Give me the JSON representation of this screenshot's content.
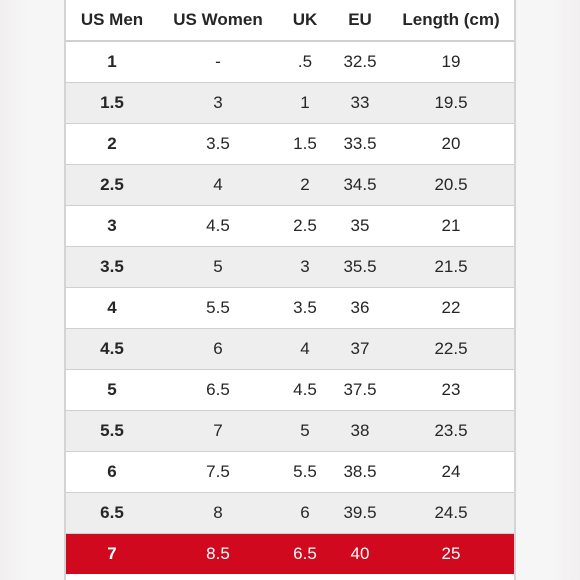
{
  "table": {
    "columns": [
      "US Men",
      "US Women",
      "UK",
      "EU",
      "Length (cm)"
    ],
    "rows": [
      [
        "1",
        "-",
        ".5",
        "32.5",
        "19"
      ],
      [
        "1.5",
        "3",
        "1",
        "33",
        "19.5"
      ],
      [
        "2",
        "3.5",
        "1.5",
        "33.5",
        "20"
      ],
      [
        "2.5",
        "4",
        "2",
        "34.5",
        "20.5"
      ],
      [
        "3",
        "4.5",
        "2.5",
        "35",
        "21"
      ],
      [
        "3.5",
        "5",
        "3",
        "35.5",
        "21.5"
      ],
      [
        "4",
        "5.5",
        "3.5",
        "36",
        "22"
      ],
      [
        "4.5",
        "6",
        "4",
        "37",
        "22.5"
      ],
      [
        "5",
        "6.5",
        "4.5",
        "37.5",
        "23"
      ],
      [
        "5.5",
        "7",
        "5",
        "38",
        "23.5"
      ],
      [
        "6",
        "7.5",
        "5.5",
        "38.5",
        "24"
      ],
      [
        "6.5",
        "8",
        "6",
        "39.5",
        "24.5"
      ],
      [
        "7",
        "8.5",
        "6.5",
        "40",
        "25"
      ]
    ],
    "highlighted_row": "7"
  },
  "colors": {
    "highlight": "#d0091f",
    "stripe": "#eeeeee",
    "text": "#262626"
  }
}
